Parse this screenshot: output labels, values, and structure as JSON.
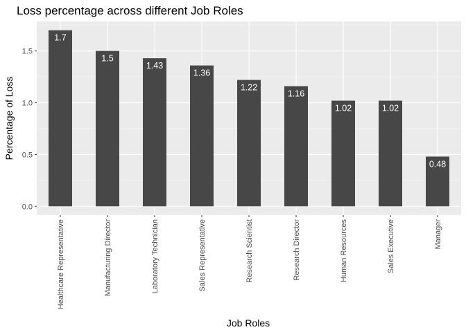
{
  "chart_data": {
    "type": "bar",
    "title": "Loss percentage across different Job Roles",
    "xlabel": "Job Roles",
    "ylabel": "Percentage of Loss",
    "categories": [
      "Healthcare Representative",
      "Manufacturing Director",
      "Laboratory Technician",
      "Sales Representative",
      "Research Scientist",
      "Research Director",
      "Human Resources",
      "Sales Executive",
      "Manager"
    ],
    "values": [
      1.7,
      1.5,
      1.43,
      1.36,
      1.22,
      1.16,
      1.02,
      1.02,
      0.48
    ],
    "data_labels": [
      "1.7",
      "1.5",
      "1.43",
      "1.36",
      "1.22",
      "1.16",
      "1.02",
      "1.02",
      "0.48"
    ],
    "yticks": [
      0.0,
      0.5,
      1.0,
      1.5
    ],
    "ytick_labels": [
      "0.0",
      "0.5",
      "1.0",
      "1.5"
    ],
    "ylim": [
      -0.085,
      1.785
    ],
    "grid": true,
    "legend": "none",
    "colors": {
      "bar": "#474747",
      "panel": "#ebebeb",
      "grid_major": "#ffffff",
      "bar_label": "#ffffff"
    }
  }
}
